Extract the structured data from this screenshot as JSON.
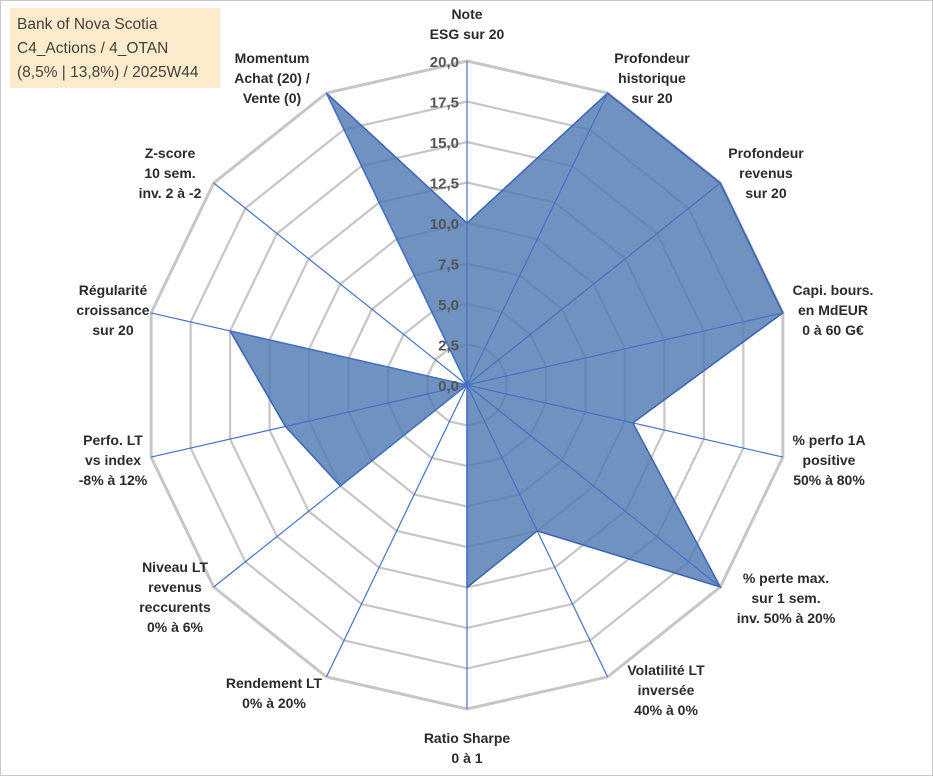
{
  "legend": {
    "line1": "Bank of Nova Scotia",
    "line2": "C4_Actions / 4_OTAN",
    "line3": "(8,5% | 13,8%) / 2025W44",
    "background": "#fdeccb"
  },
  "chart_data": {
    "type": "radar",
    "title": "Bank of Nova Scotia",
    "rlim": [
      0,
      20
    ],
    "ticks": [
      "0,0",
      "2,5",
      "5,0",
      "7,5",
      "10,0",
      "12,5",
      "15,0",
      "17,5",
      "20,0"
    ],
    "tick_values": [
      0,
      2.5,
      5,
      7.5,
      10,
      12.5,
      15,
      17.5,
      20
    ],
    "grid": true,
    "categories": [
      [
        "Note",
        "ESG sur 20"
      ],
      [
        "Profondeur",
        "historique",
        "sur 20"
      ],
      [
        "Profondeur",
        "revenus",
        "sur 20"
      ],
      [
        "Capi. bours.",
        "en MdEUR",
        "0 à 60 G€"
      ],
      [
        "% perfo 1A",
        "positive",
        "50% à 80%"
      ],
      [
        "% perte max.",
        "sur 1 sem.",
        "inv. 50% à 20%"
      ],
      [
        "Volatilité LT",
        "inversée",
        "40% à 0%"
      ],
      [
        "Ratio Sharpe",
        "0 à 1"
      ],
      [
        "Rendement LT",
        "0% à 20%"
      ],
      [
        "Niveau LT",
        "revenus",
        "reccurents",
        "0% à 6%"
      ],
      [
        "Perfo. LT",
        "vs index",
        "-8% à 12%"
      ],
      [
        "Régularité",
        "croissance",
        "sur 20"
      ],
      [
        "Z-score",
        "10 sem.",
        "inv. 2 à -2"
      ],
      [
        "Momentum",
        "Achat (20) /",
        "Vente (0)"
      ]
    ],
    "series": [
      {
        "name": "Bank of Nova Scotia",
        "values": [
          10,
          20,
          20,
          20,
          10.5,
          20,
          10,
          12.5,
          0,
          10,
          11.5,
          15,
          0,
          20
        ],
        "fill": "#4f7ab3",
        "stroke": "#3a64b4"
      }
    ],
    "grid_color": "#c6c6c6",
    "spoke_color": "#4472c4"
  }
}
